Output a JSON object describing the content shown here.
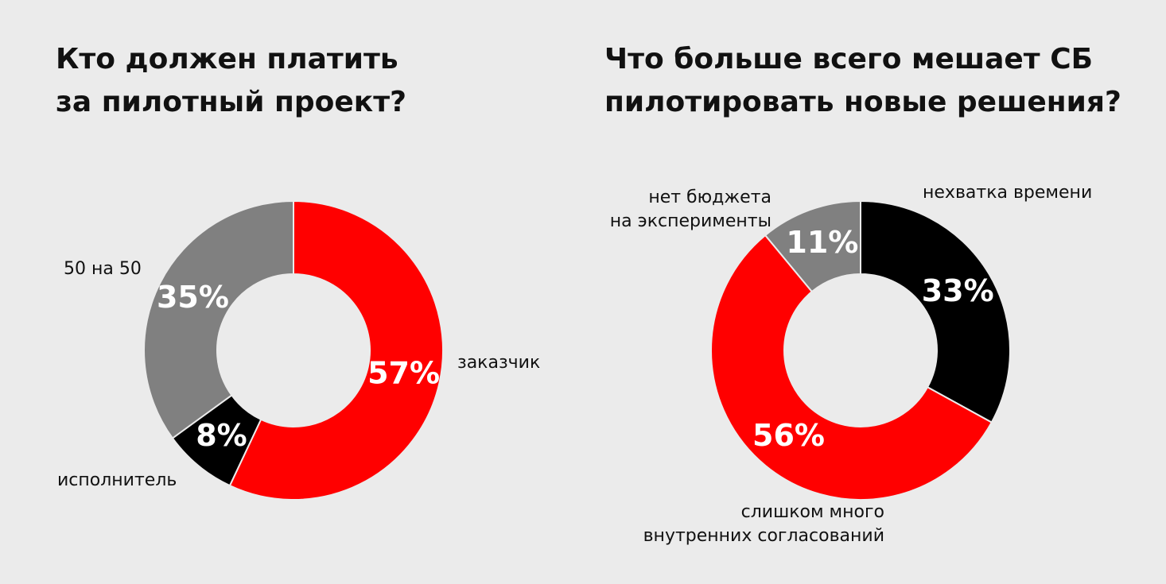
{
  "chart_data": [
    {
      "type": "pie",
      "title": "Кто должен платить\nза пилотный проект?",
      "categories": [
        "заказчик",
        "исполнитель",
        "50 на 50"
      ],
      "values": [
        57,
        8,
        35
      ],
      "value_labels": [
        "57%",
        "8%",
        "35%"
      ],
      "colors": [
        "#ff0000",
        "#000000",
        "#808080"
      ]
    },
    {
      "type": "pie",
      "title": "Что больше всего мешает СБ\nпилотировать новые решения?",
      "categories": [
        "нехватка времени",
        "слишком много\nвнутренних согласований",
        "нет бюджета\nна эксперименты"
      ],
      "values": [
        33,
        56,
        11
      ],
      "value_labels": [
        "33%",
        "56%",
        "11%"
      ],
      "colors": [
        "#000000",
        "#ff0000",
        "#808080"
      ]
    }
  ]
}
